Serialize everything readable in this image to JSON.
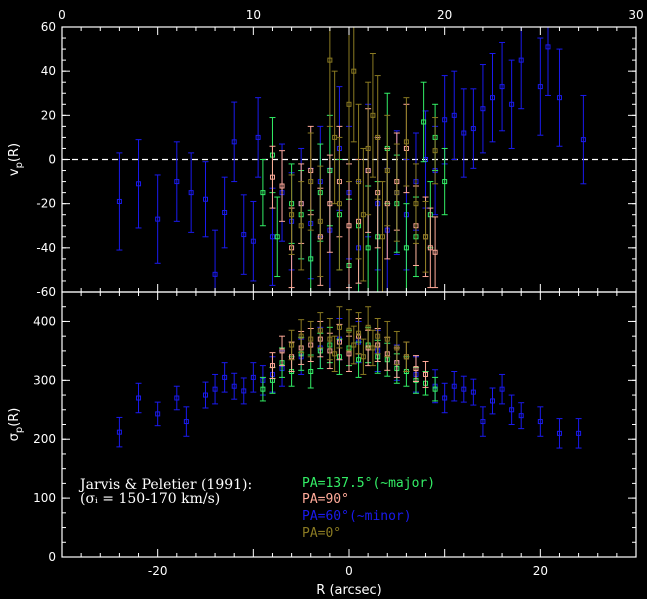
{
  "colors": {
    "background": "#000000",
    "axes": "#ffffff",
    "pa137": "#33ee66",
    "pa90": "#ffaa99",
    "pa60": "#1a1aee",
    "pa0": "#8a7a22",
    "zero_line": "#ffffff"
  },
  "annotation": {
    "line1": "Jarvis & Peletier (1991):",
    "line2": "(σᵢ = 150-170 km/s)"
  },
  "legend": [
    {
      "label": "PA=137.5°(~major)",
      "series": "pa137"
    },
    {
      "label": "PA=90°",
      "series": "pa90"
    },
    {
      "label": "PA=60°(~minor)",
      "series": "pa60"
    },
    {
      "label": "PA=0°",
      "series": "pa0"
    }
  ],
  "chart_data": [
    {
      "type": "scatter",
      "panel": "top",
      "ylabel": "v_p(R)",
      "xlim": [
        -30,
        30
      ],
      "ylim": [
        -60,
        60
      ],
      "yticks": [
        -60,
        -40,
        -20,
        0,
        20,
        40,
        60
      ],
      "top_axis_ticks": [
        0,
        10,
        20,
        30
      ],
      "zero_line": true,
      "series": [
        {
          "key": "pa60",
          "points": [
            [
              -24,
              -19,
              22
            ],
            [
              -22,
              -11,
              20
            ],
            [
              -20,
              -27,
              20
            ],
            [
              -18,
              -10,
              18
            ],
            [
              -16.5,
              -15,
              18
            ],
            [
              -15,
              -18,
              17
            ],
            [
              -14,
              -52,
              20
            ],
            [
              -13,
              -24,
              16
            ],
            [
              -12,
              8,
              18
            ],
            [
              -11,
              -34,
              18
            ],
            [
              -10,
              -37,
              18
            ],
            [
              -9.5,
              10,
              18
            ],
            [
              -8,
              -35,
              22
            ],
            [
              -7,
              -15,
              22
            ],
            [
              -6,
              -28,
              22
            ],
            [
              -5,
              -20,
              25
            ],
            [
              -4,
              -29,
              25
            ],
            [
              -3,
              -10,
              25
            ],
            [
              -2,
              -32,
              28
            ],
            [
              -1,
              5,
              28
            ],
            [
              0,
              -15,
              30
            ],
            [
              1,
              -40,
              30
            ],
            [
              2,
              -5,
              30
            ],
            [
              3,
              -20,
              30
            ],
            [
              4,
              -32,
              28
            ],
            [
              5,
              -15,
              28
            ],
            [
              6,
              -25,
              25
            ],
            [
              7,
              -10,
              22
            ],
            [
              8,
              0,
              22
            ],
            [
              9,
              -5,
              20
            ],
            [
              10,
              18,
              20
            ],
            [
              11,
              20,
              20
            ],
            [
              12,
              12,
              20
            ],
            [
              13,
              14,
              18
            ],
            [
              14,
              23,
              20
            ],
            [
              15,
              28,
              20
            ],
            [
              16,
              33,
              20
            ],
            [
              17,
              25,
              20
            ],
            [
              18,
              45,
              22
            ],
            [
              20,
              33,
              22
            ],
            [
              22,
              28,
              22
            ],
            [
              24.5,
              9,
              20
            ],
            [
              20.8,
              51,
              22
            ]
          ]
        },
        {
          "key": "pa137",
          "points": [
            [
              -9,
              -15,
              15
            ],
            [
              -8,
              2,
              17
            ],
            [
              -7.5,
              -35,
              18
            ],
            [
              -6,
              -20,
              18
            ],
            [
              -5,
              -25,
              20
            ],
            [
              -4,
              -45,
              22
            ],
            [
              -3,
              -15,
              22
            ],
            [
              -2,
              -5,
              25
            ],
            [
              -1,
              -25,
              25
            ],
            [
              0,
              -48,
              30
            ],
            [
              1,
              -30,
              30
            ],
            [
              2,
              -40,
              28
            ],
            [
              3,
              -35,
              25
            ],
            [
              4,
              5,
              25
            ],
            [
              5,
              -20,
              22
            ],
            [
              6,
              -40,
              20
            ],
            [
              7,
              -35,
              18
            ],
            [
              7.8,
              17,
              18
            ],
            [
              8.5,
              -25,
              15
            ],
            [
              9,
              10,
              15
            ],
            [
              10,
              -10,
              15
            ]
          ]
        },
        {
          "key": "pa90",
          "points": [
            [
              -8,
              -8,
              14
            ],
            [
              -7,
              -12,
              16
            ],
            [
              -6,
              -40,
              18
            ],
            [
              -5,
              -20,
              18
            ],
            [
              -4,
              -5,
              20
            ],
            [
              -3,
              -35,
              22
            ],
            [
              -2,
              -20,
              22
            ],
            [
              -1,
              -10,
              25
            ],
            [
              0,
              -30,
              28
            ],
            [
              1,
              -28,
              28
            ],
            [
              2,
              -5,
              28
            ],
            [
              3,
              -15,
              25
            ],
            [
              4,
              -20,
              25
            ],
            [
              5,
              -10,
              22
            ],
            [
              6,
              5,
              20
            ],
            [
              7,
              -30,
              18
            ],
            [
              8,
              -35,
              18
            ],
            [
              8.5,
              -40,
              18
            ],
            [
              9,
              -42,
              16
            ]
          ]
        },
        {
          "key": "pa0",
          "points": [
            [
              -6,
              -25,
              18
            ],
            [
              -5,
              -30,
              20
            ],
            [
              -4,
              -10,
              22
            ],
            [
              -3,
              -28,
              25
            ],
            [
              -2,
              45,
              30
            ],
            [
              -1,
              -20,
              30
            ],
            [
              0,
              25,
              35
            ],
            [
              1,
              -10,
              35
            ],
            [
              2,
              5,
              30
            ],
            [
              3,
              10,
              28
            ],
            [
              4,
              -5,
              25
            ],
            [
              5,
              -15,
              22
            ],
            [
              6,
              8,
              20
            ],
            [
              7,
              -20,
              18
            ],
            [
              8,
              -35,
              16
            ],
            [
              9,
              4,
              15
            ],
            [
              -1.5,
              10,
              30
            ],
            [
              0.5,
              40,
              32
            ],
            [
              1.5,
              -25,
              30
            ],
            [
              2.5,
              20,
              28
            ],
            [
              3.5,
              -35,
              25
            ]
          ]
        }
      ]
    },
    {
      "type": "scatter",
      "panel": "bottom",
      "xlabel": "R (arcsec)",
      "ylabel": "σ_p(R)",
      "xlim": [
        -30,
        30
      ],
      "ylim": [
        0,
        450
      ],
      "xticks": [
        -20,
        0,
        20
      ],
      "yticks": [
        0,
        100,
        200,
        300,
        400
      ],
      "series": [
        {
          "key": "pa60",
          "points": [
            [
              -24,
              212,
              25
            ],
            [
              -22,
              270,
              25
            ],
            [
              -20,
              243,
              20
            ],
            [
              -18,
              270,
              20
            ],
            [
              -17,
              230,
              25
            ],
            [
              -15,
              275,
              22
            ],
            [
              -14,
              285,
              25
            ],
            [
              -13,
              305,
              25
            ],
            [
              -12,
              290,
              22
            ],
            [
              -11,
              282,
              22
            ],
            [
              -10,
              305,
              25
            ],
            [
              -9,
              300,
              25
            ],
            [
              -8,
              310,
              30
            ],
            [
              -7,
              320,
              30
            ],
            [
              -5,
              340,
              30
            ],
            [
              -3,
              355,
              35
            ],
            [
              -1,
              370,
              35
            ],
            [
              1,
              365,
              35
            ],
            [
              3,
              350,
              35
            ],
            [
              5,
              330,
              30
            ],
            [
              7,
              310,
              30
            ],
            [
              9,
              290,
              28
            ],
            [
              10,
              270,
              25
            ],
            [
              11,
              290,
              25
            ],
            [
              12,
              285,
              22
            ],
            [
              13,
              280,
              22
            ],
            [
              14,
              230,
              25
            ],
            [
              15,
              265,
              22
            ],
            [
              16,
              285,
              25
            ],
            [
              17,
              250,
              25
            ],
            [
              18,
              240,
              22
            ],
            [
              20,
              230,
              25
            ],
            [
              22,
              210,
              25
            ],
            [
              24,
              210,
              25
            ]
          ]
        },
        {
          "key": "pa137",
          "points": [
            [
              -9,
              285,
              20
            ],
            [
              -8,
              300,
              22
            ],
            [
              -7,
              330,
              25
            ],
            [
              -6,
              315,
              25
            ],
            [
              -5,
              345,
              28
            ],
            [
              -4,
              315,
              28
            ],
            [
              -3,
              350,
              30
            ],
            [
              -2,
              360,
              30
            ],
            [
              -1,
              340,
              30
            ],
            [
              0,
              355,
              30
            ],
            [
              1,
              335,
              30
            ],
            [
              2,
              360,
              30
            ],
            [
              3,
              340,
              28
            ],
            [
              4,
              335,
              28
            ],
            [
              5,
              320,
              25
            ],
            [
              6,
              315,
              25
            ],
            [
              7,
              300,
              22
            ],
            [
              8,
              295,
              20
            ],
            [
              9,
              285,
              20
            ]
          ]
        },
        {
          "key": "pa90",
          "points": [
            [
              -8,
              325,
              22
            ],
            [
              -7,
              350,
              25
            ],
            [
              -6,
              340,
              25
            ],
            [
              -5,
              355,
              28
            ],
            [
              -4,
              360,
              28
            ],
            [
              -3,
              370,
              30
            ],
            [
              -2,
              350,
              30
            ],
            [
              -1,
              365,
              30
            ],
            [
              0,
              345,
              30
            ],
            [
              1,
              375,
              30
            ],
            [
              2,
              355,
              30
            ],
            [
              3,
              360,
              28
            ],
            [
              4,
              345,
              28
            ],
            [
              5,
              330,
              25
            ],
            [
              6,
              340,
              25
            ],
            [
              7,
              320,
              22
            ],
            [
              8,
              310,
              22
            ]
          ]
        },
        {
          "key": "pa0",
          "points": [
            [
              -6,
              360,
              25
            ],
            [
              -5,
              375,
              28
            ],
            [
              -4,
              370,
              30
            ],
            [
              -3,
              385,
              30
            ],
            [
              -2,
              370,
              35
            ],
            [
              -1,
              390,
              35
            ],
            [
              0,
              385,
              35
            ],
            [
              1,
              380,
              35
            ],
            [
              2,
              390,
              35
            ],
            [
              3,
              375,
              30
            ],
            [
              4,
              370,
              30
            ],
            [
              5,
              355,
              28
            ],
            [
              6,
              340,
              25
            ],
            [
              -1.5,
              345,
              30
            ],
            [
              0.5,
              360,
              32
            ],
            [
              1.5,
              340,
              30
            ],
            [
              2.5,
              355,
              30
            ]
          ]
        }
      ]
    }
  ]
}
